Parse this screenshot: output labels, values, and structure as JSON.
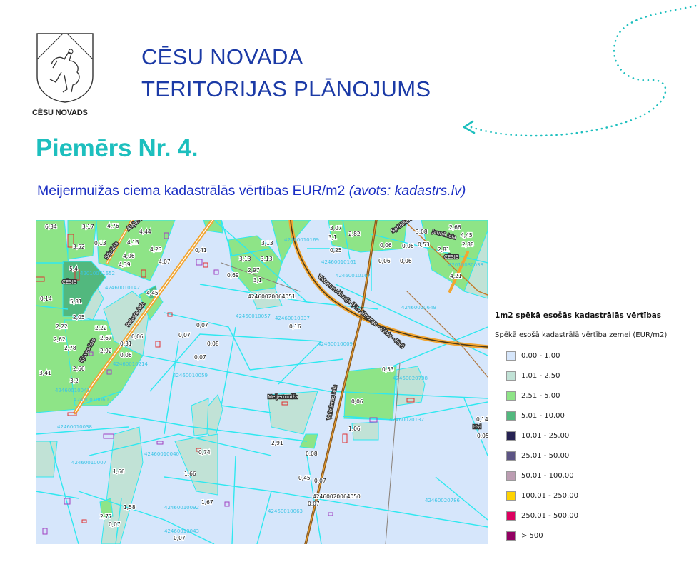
{
  "header": {
    "logo_caption": "CĒSU NOVADS",
    "title_line1": "CĒSU NOVADA",
    "title_line2": "TERITORIJAS PLĀNOJUMS"
  },
  "example_title": "Piemērs Nr. 4.",
  "subtitle": {
    "main": "Meijermuižas ciema kadastrālās vērtības EUR/m2",
    "source": "(avots: kadastrs.lv)"
  },
  "colors": {
    "title_blue": "#1b3aa6",
    "accent_teal": "#1dbfbe",
    "subtitle_blue": "#1b2fc4",
    "parcel_border": "#2ee8f0",
    "road_orange": "#f2a531"
  },
  "map": {
    "place_labels": [
      "CĒSIS",
      "CĒSIS",
      "Meijermuiža",
      "Līvi"
    ],
    "street_labels": [
      "Siļu iela",
      "Alejas iela",
      "Kļavas iela",
      "Palasta iela",
      "Sprīdīša iela",
      "Jaunā iela",
      "Valmieras iela",
      "Vidzemes šoseja (P14 Umurga – Cēsis – Līvi)"
    ],
    "value_labels": [
      "6,34",
      "4,76",
      "3,17",
      "3,52",
      "0,13",
      "4,13",
      "4,44",
      "4,23",
      "4,06",
      "4,07",
      "4,39",
      "5,4",
      "0,14",
      "5,81",
      "4,45",
      "2,05",
      "2,22",
      "2,22",
      "2,62",
      "2,67",
      "2,78",
      "2,92",
      "2,66",
      "3,41",
      "3,2",
      "0,06",
      "0,31",
      "0,06",
      "0,07",
      "0,07",
      "0,08",
      "0,07",
      "0,41",
      "0,69",
      "3,13",
      "3,13",
      "3,13",
      "2,97",
      "3,1",
      "3,07",
      "3,1",
      "2,82",
      "0,25",
      "0,06",
      "0,06",
      "0,06",
      "0,06",
      "3,08",
      "2,66",
      "4,45",
      "2,81",
      "2,88",
      "0,53",
      "4,21",
      "0,16",
      "0,53",
      "1,66",
      "1,66",
      "1,67",
      "0,74",
      "1,58",
      "2,77",
      "0,07",
      "0,07",
      "0,08",
      "0,06",
      "1,06",
      "2,91",
      "0,45",
      "0,07",
      "0,07",
      "0,14",
      "0,05"
    ],
    "cadastre_labels": [
      "42010071652",
      "42460010142",
      "42460020064051",
      "42460010057",
      "42460010037",
      "42460010169",
      "42460010161",
      "42460010167",
      "42460010009",
      "42460020649",
      "42010030038",
      "42010030146",
      "42460010214",
      "42460010059",
      "42460010060",
      "42460010041",
      "42460010038",
      "42460010040",
      "42460010007",
      "42460010092",
      "42460010043",
      "42460010063",
      "42460020738",
      "42460020064050",
      "42460020786",
      "42460020132"
    ]
  },
  "legend": {
    "title": "1m2 spēkā esošās kadastrālās vērtības",
    "subtitle": "Spēkā esošā kadastrālā vērtība zemei (EUR/m2)",
    "items": [
      {
        "label": "0.00 - 1.00",
        "color": "#d6e6fb"
      },
      {
        "label": "1.01 - 2.50",
        "color": "#c1e2d6"
      },
      {
        "label": "2.51 - 5.00",
        "color": "#8ee487"
      },
      {
        "label": "5.01 - 10.00",
        "color": "#52b87e"
      },
      {
        "label": "10.01 - 25.00",
        "color": "#262252"
      },
      {
        "label": "25.01 - 50.00",
        "color": "#5c5484"
      },
      {
        "label": "50.01 - 100.00",
        "color": "#bc9db2"
      },
      {
        "label": "100.01 - 250.00",
        "color": "#fed300"
      },
      {
        "label": "250.01 - 500.00",
        "color": "#dc0060"
      },
      {
        "label": "> 500",
        "color": "#920062"
      }
    ]
  }
}
